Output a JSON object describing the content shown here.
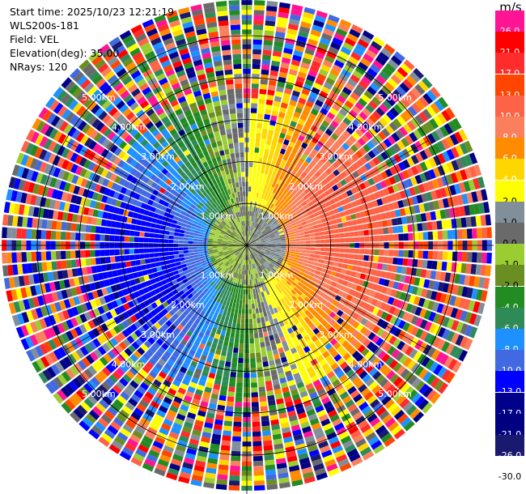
{
  "header": {
    "start_time": "Start time: 2025/10/23 12:21:19",
    "instrument": "WLS200s-181",
    "field": "Field: VEL",
    "elevation": "Elevation(deg): 35.00",
    "nrays": "NRays: 120"
  },
  "chart_data": {
    "type": "heatmap",
    "projection": "polar-ppi",
    "field": "VEL",
    "units": "m/s",
    "rays": 120,
    "range_rings_km": [
      1.0,
      2.0,
      3.0,
      4.0,
      5.0
    ],
    "range_labels": [
      "1.00km",
      "2.00km",
      "3.00km",
      "4.00km",
      "5.00km"
    ],
    "max_range_km": 5.85,
    "colorbar": {
      "unit": "m/s",
      "levels": [
        {
          "label": "26.0",
          "color": "#ff1493"
        },
        {
          "label": "21.0",
          "color": "#ff0000"
        },
        {
          "label": "17.0",
          "color": "#ff2c2c"
        },
        {
          "label": "13.0",
          "color": "#ff4500"
        },
        {
          "label": "10.0",
          "color": "#ff6347"
        },
        {
          "label": "8.0",
          "color": "#fa7f5c"
        },
        {
          "label": "6.0",
          "color": "#ff8c00"
        },
        {
          "label": "4.0",
          "color": "#ffd700"
        },
        {
          "label": "2.0",
          "color": "#ffff00"
        },
        {
          "label": "1.0",
          "color": "#808f9a"
        },
        {
          "label": "0.0",
          "color": "#6a6a6a"
        },
        {
          "label": "-1.0",
          "color": "#9acd32"
        },
        {
          "label": "-2.0",
          "color": "#6b8e23"
        },
        {
          "label": "-4.0",
          "color": "#228b22"
        },
        {
          "label": "-6.0",
          "color": "#2e8b57"
        },
        {
          "label": "-8.0",
          "color": "#1e90ff"
        },
        {
          "label": "-10.0",
          "color": "#4169e1"
        },
        {
          "label": "-13.0",
          "color": "#0000ff"
        },
        {
          "label": "-17.0",
          "color": "#00008b"
        },
        {
          "label": "-21.0",
          "color": "#000080"
        },
        {
          "label": "-26.0",
          "color": "#191970"
        },
        {
          "label": "-30.0",
          "color": ""
        }
      ]
    },
    "wind": {
      "toward_sector_azimuth_deg": 80,
      "away_sector_azimuth_deg": 260,
      "peak_velocity_ms": 12,
      "coherent_range_km": 3.6
    }
  }
}
